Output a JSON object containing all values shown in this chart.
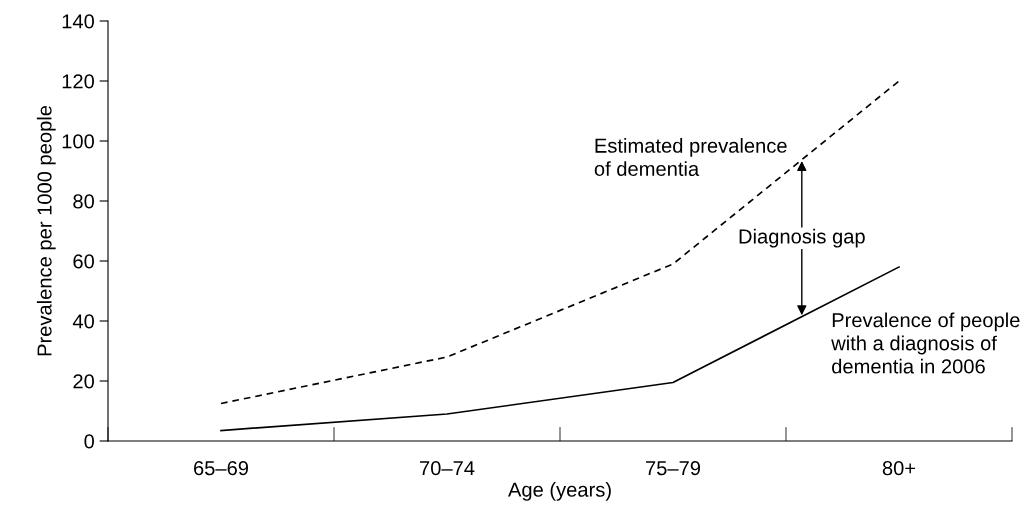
{
  "chart_data": {
    "type": "line",
    "xlabel": "Age (years)",
    "ylabel": "Prevalence per 1000 people",
    "categories": [
      "65–69",
      "70–74",
      "75–79",
      "80+"
    ],
    "series": [
      {
        "name": "Estimated prevalence\nof dementia",
        "color": "#000000",
        "line_style": "dashed",
        "values": [
          12.5,
          28,
          59,
          120
        ]
      },
      {
        "name": "Prevalence of people\nwith a diagnosis of\ndementia in 2006",
        "color": "#000000",
        "line_style": "solid",
        "values": [
          3.5,
          9,
          19.5,
          58
        ]
      }
    ],
    "annotations": [
      "Diagnosis gap"
    ],
    "ylim": [
      0,
      140
    ],
    "yticks": [
      0,
      20,
      40,
      60,
      80,
      100,
      120,
      140
    ],
    "grid": false,
    "marker": "none"
  }
}
